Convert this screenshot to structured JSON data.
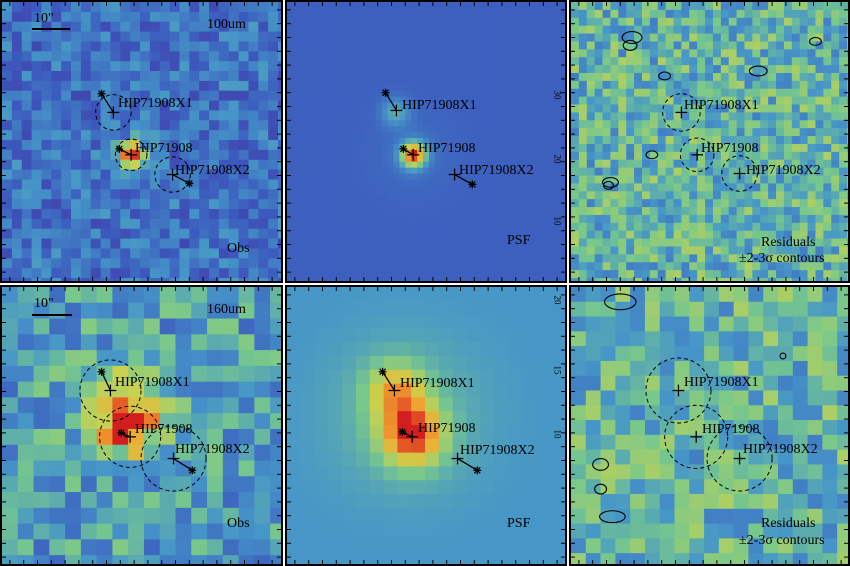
{
  "figure": {
    "rows": [
      {
        "band": "100um",
        "scalebar_label": "10\"",
        "panels": [
          {
            "kind": "observed",
            "corner_label": "Obs",
            "sources": [
              "HIP71908X1",
              "HIP71908",
              "HIP71908X2"
            ]
          },
          {
            "kind": "model",
            "corner_label": "PSF",
            "sources": [
              "HIP71908X1",
              "HIP71908",
              "HIP71908X2"
            ]
          },
          {
            "kind": "residual",
            "corner_label_line1": "Residuals",
            "corner_label_line2": "±2-3σ contours",
            "sources": [
              "HIP71908X1",
              "HIP71908",
              "HIP71908X2"
            ]
          }
        ]
      },
      {
        "band": "160um",
        "scalebar_label": "10\"",
        "panels": [
          {
            "kind": "observed",
            "corner_label": "Obs",
            "sources": [
              "HIP71908X1",
              "HIP71908",
              "HIP71908X2"
            ]
          },
          {
            "kind": "model",
            "corner_label": "PSF",
            "sources": [
              "HIP71908X1",
              "HIP71908",
              "HIP71908X2"
            ]
          },
          {
            "kind": "residual",
            "corner_label_line1": "Residuals",
            "corner_label_line2": "±2-3σ contours",
            "sources": [
              "HIP71908X1",
              "HIP71908",
              "HIP71908X2"
            ]
          }
        ]
      }
    ],
    "axis_ticks_top_psf": [
      "30",
      "20",
      "10"
    ],
    "axis_ticks_bottom_psf": [
      "20",
      "15",
      "10"
    ],
    "colors": {
      "cool": "#3b4cc0",
      "mid": "#7fc98f",
      "warm": "#e8642b",
      "peak": "#d7191c"
    }
  }
}
